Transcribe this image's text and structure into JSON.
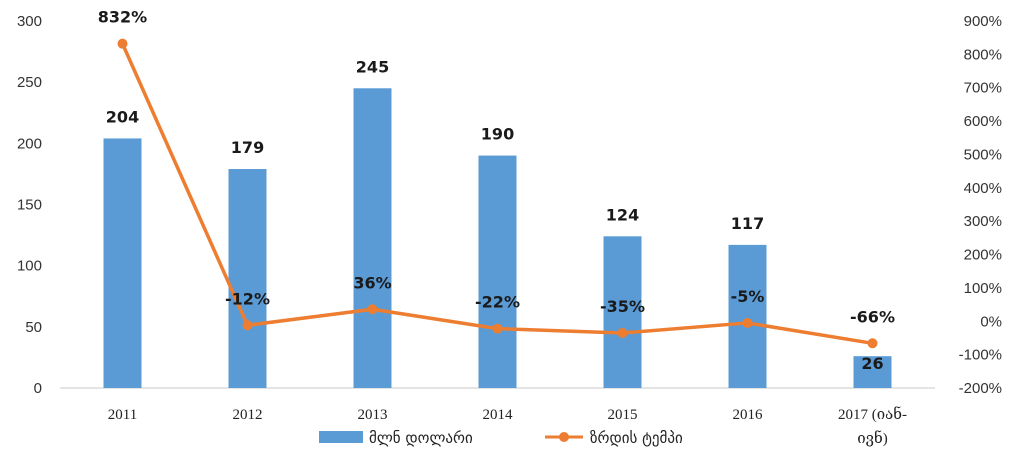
{
  "chart_data": {
    "type": "bar",
    "categories": [
      "2011",
      "2012",
      "2013",
      "2014",
      "2015",
      "2016",
      "2017 (იან-\nივნ)"
    ],
    "series": [
      {
        "name": "მლნ დოლარი",
        "type": "bar",
        "axis": "left",
        "color": "#5B9BD5",
        "values": [
          204,
          179,
          245,
          190,
          124,
          117,
          26
        ],
        "labels": [
          "204",
          "179",
          "245",
          "190",
          "124",
          "117",
          "26"
        ]
      },
      {
        "name": "ზრდის ტემპი",
        "type": "line",
        "axis": "right",
        "color": "#ED7D31",
        "values": [
          832,
          -12,
          36,
          -22,
          -35,
          -5,
          -66
        ],
        "labels": [
          "832%",
          "-12%",
          "36%",
          "-22%",
          "-35%",
          "-5%",
          "-66%"
        ]
      }
    ],
    "y_left": {
      "min": 0,
      "max": 300,
      "ticks": [
        0,
        50,
        100,
        150,
        200,
        250,
        300
      ],
      "tick_labels": [
        "0",
        "50",
        "100",
        "150",
        "200",
        "250",
        "300"
      ]
    },
    "y_right": {
      "min": -200,
      "max": 900,
      "ticks": [
        -200,
        -100,
        0,
        100,
        200,
        300,
        400,
        500,
        600,
        700,
        800,
        900
      ],
      "tick_labels": [
        "-200%",
        "-100%",
        "0%",
        "100%",
        "200%",
        "300%",
        "400%",
        "500%",
        "600%",
        "700%",
        "800%",
        "900%"
      ]
    },
    "grid": false,
    "legend_position": "bottom"
  }
}
